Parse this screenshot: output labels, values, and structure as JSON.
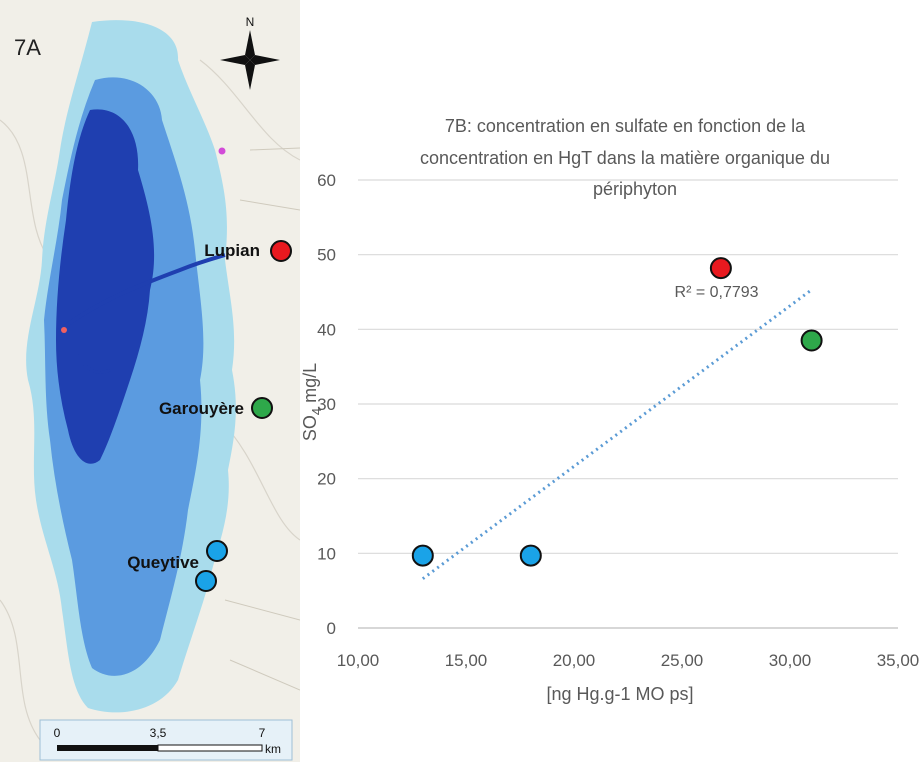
{
  "map": {
    "panel_label": "7A",
    "north_label": "N",
    "scale_labels": [
      "0",
      "3,5",
      "7"
    ],
    "scale_unit": "km",
    "sites": [
      {
        "label": "Lupian",
        "color": "#e8191f"
      },
      {
        "label": "Garouyère",
        "color": "#2ea84a"
      },
      {
        "label": "Queytive",
        "color": "#1aa3e8"
      }
    ],
    "colors": {
      "basin_light": "#a9dcec",
      "basin_mid": "#5b9be0",
      "basin_dark": "#1f3fb0",
      "site_blue": "#1aa3e8",
      "site_red": "#e8191f",
      "site_green": "#2ea84a"
    }
  },
  "chart_data": {
    "type": "scatter",
    "title_lines": [
      "7B: concentration en sulfate en fonction de la",
      "concentration en HgT dans la matière organique du",
      "périphyton"
    ],
    "xlabel": "[ng Hg.g-1 MO ps]",
    "ylabel_main": "SO",
    "ylabel_sub": "4",
    "ylabel_rest": " mg/L",
    "xlim": [
      10,
      35
    ],
    "ylim": [
      0,
      60
    ],
    "x_ticks": [
      "10,00",
      "15,00",
      "20,00",
      "25,00",
      "30,00",
      "35,00"
    ],
    "y_ticks": [
      "0",
      "10",
      "20",
      "30",
      "40",
      "50",
      "60"
    ],
    "grid": "horizontal",
    "points": [
      {
        "x": 13.0,
        "y": 9.7,
        "color": "#1aa3e8"
      },
      {
        "x": 18.0,
        "y": 9.7,
        "color": "#1aa3e8"
      },
      {
        "x": 26.8,
        "y": 48.2,
        "color": "#e8191f"
      },
      {
        "x": 31.0,
        "y": 38.5,
        "color": "#2ea84a"
      }
    ],
    "trendline": {
      "x1": 13.0,
      "y1": 6.6,
      "x2": 31.0,
      "y2": 45.3,
      "color": "#5b9bd5"
    },
    "r2_label": "R² = 0,7793",
    "r2_anchor": {
      "x": 26.6,
      "y": 44.3
    }
  }
}
